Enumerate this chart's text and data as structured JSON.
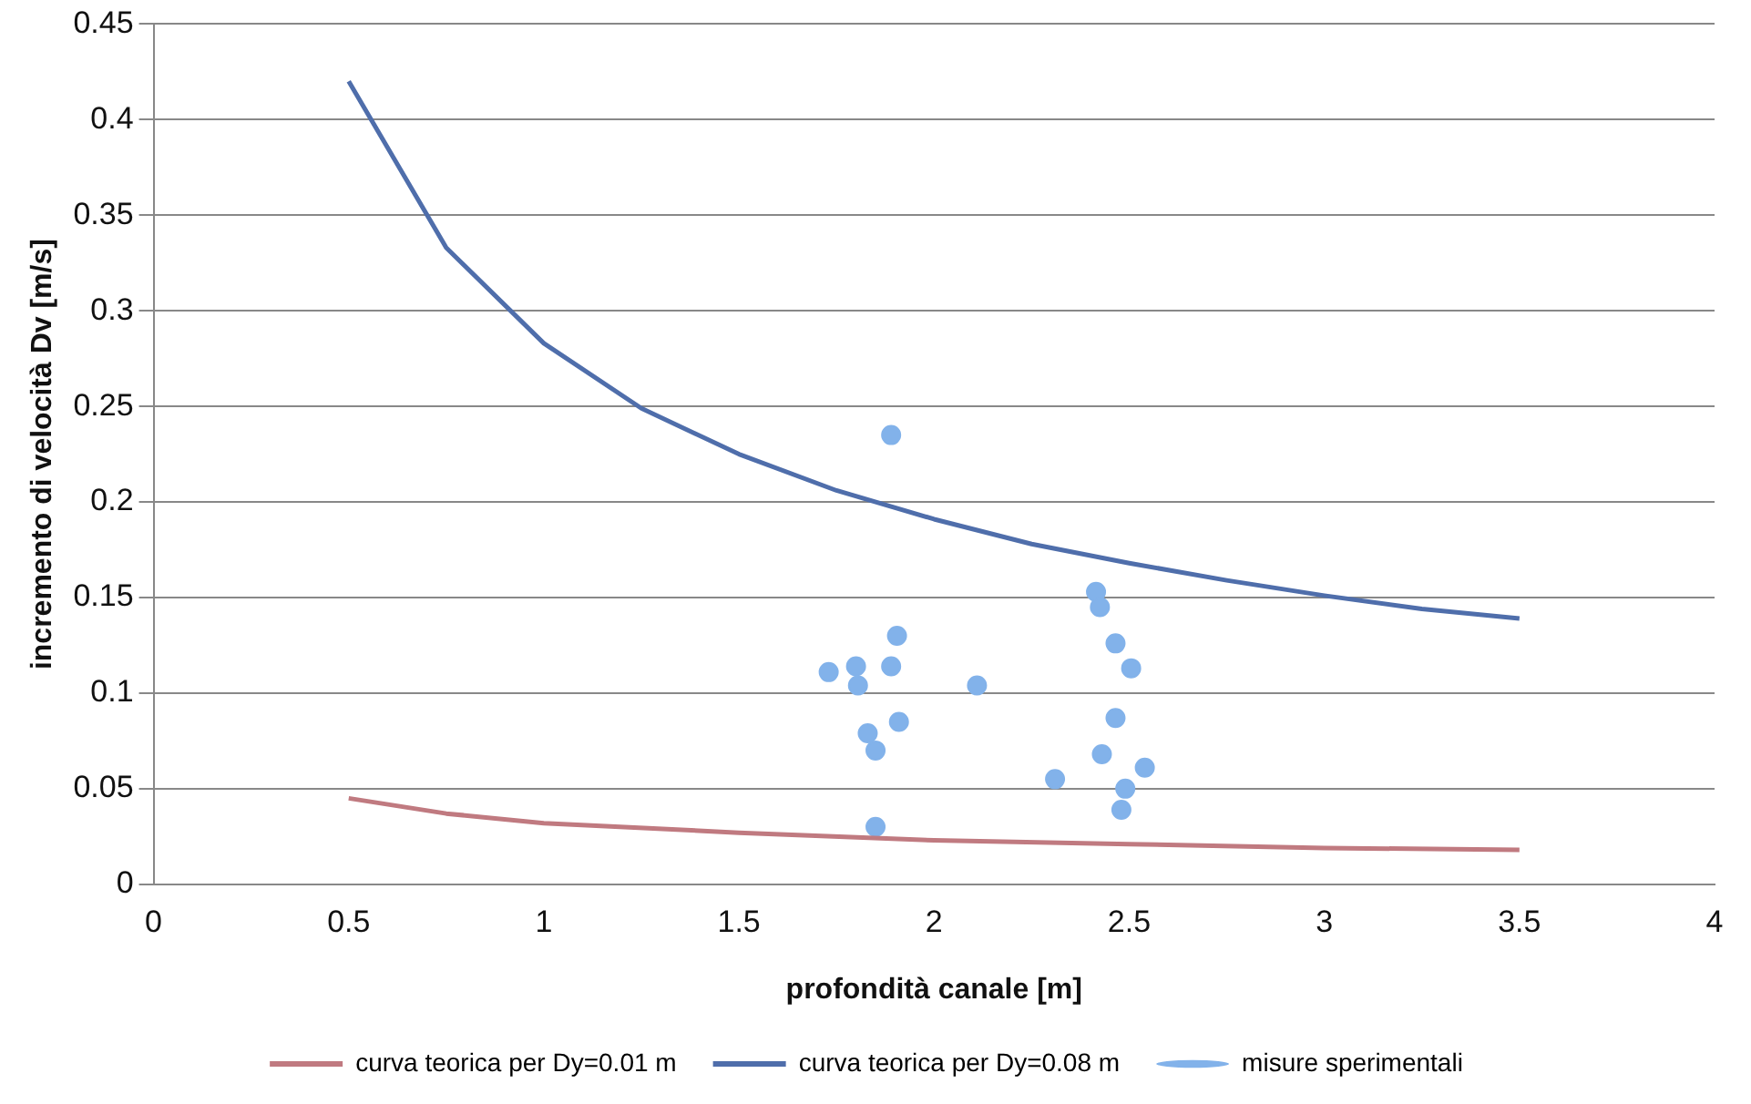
{
  "chart_data": {
    "type": "line",
    "xlabel": "profondità canale [m]",
    "ylabel": "incremento di velocità Dv [m/s]",
    "xlim": [
      0,
      4
    ],
    "xticks": [
      0,
      0.5,
      1,
      1.5,
      2,
      2.5,
      3,
      3.5,
      4
    ],
    "ylim": [
      0,
      0.45
    ],
    "yticks": [
      0,
      0.05,
      0.1,
      0.15,
      0.2,
      0.25,
      0.3,
      0.35,
      0.4,
      0.45
    ],
    "grid": "y",
    "legend": "bottom",
    "marker": "none",
    "line_style": "solid",
    "series": [
      {
        "name": "curva teorica per Dy=0.01 m",
        "color": "#c07a80",
        "x": [
          0.5,
          0.75,
          1,
          1.5,
          2,
          2.5,
          3,
          3.5
        ],
        "values": [
          0.045,
          0.037,
          0.032,
          0.027,
          0.023,
          0.021,
          0.019,
          0.018
        ]
      },
      {
        "name": "curva teorica per Dy=0.08 m",
        "color": "#4f6eab",
        "x": [
          0.5,
          0.75,
          1,
          1.25,
          1.5,
          1.75,
          2,
          2.25,
          2.5,
          2.75,
          3,
          3.25,
          3.5
        ],
        "values": [
          0.42,
          0.333,
          0.283,
          0.249,
          0.225,
          0.206,
          0.191,
          0.178,
          0.168,
          0.159,
          0.151,
          0.144,
          0.139
        ]
      },
      {
        "name": "misure sperimentali",
        "type": "scatter",
        "marker": "circle",
        "color": "#82b2ea",
        "x": [
          1.89,
          1.905,
          1.73,
          1.8,
          1.805,
          1.89,
          2.11,
          1.83,
          1.85,
          1.91,
          1.85,
          2.415,
          2.425,
          2.465,
          2.505,
          2.465,
          2.43,
          2.54,
          2.31,
          2.49,
          2.48
        ],
        "values": [
          0.235,
          0.13,
          0.111,
          0.114,
          0.104,
          0.114,
          0.104,
          0.079,
          0.07,
          0.085,
          0.03,
          0.153,
          0.145,
          0.126,
          0.113,
          0.087,
          0.068,
          0.061,
          0.055,
          0.05,
          0.039
        ]
      }
    ]
  }
}
